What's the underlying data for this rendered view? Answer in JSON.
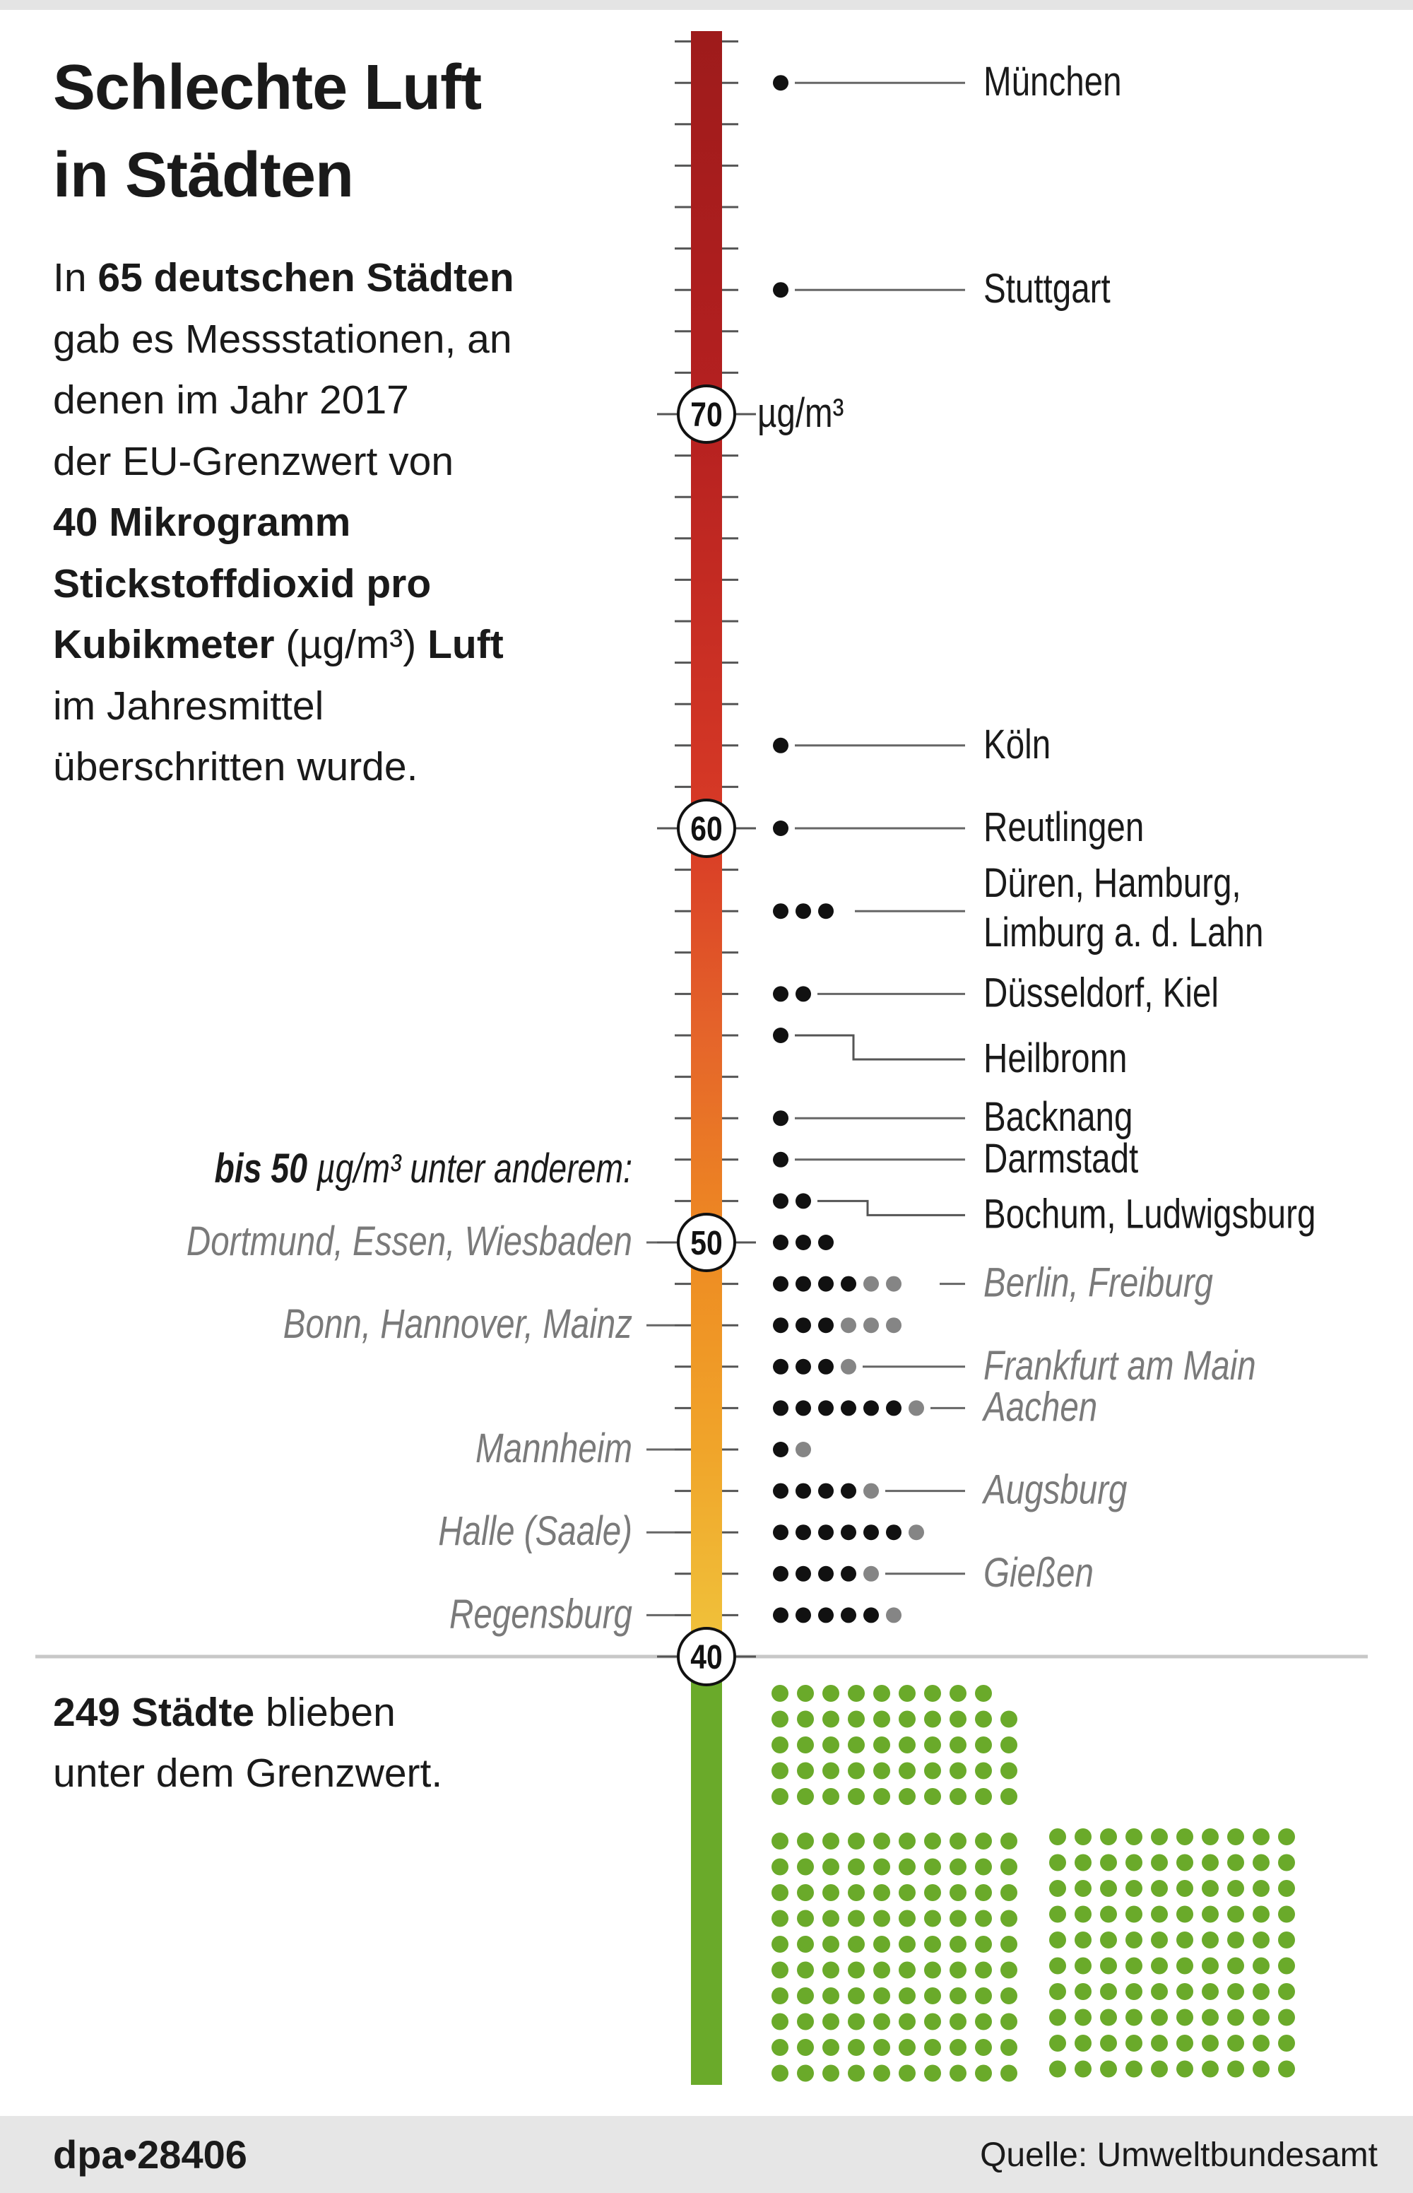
{
  "title_lines": [
    "Schlechte Luft",
    "in Städten"
  ],
  "intro": {
    "p1": "In ",
    "p1b": "65 deutschen Städten",
    "l2": "gab es Messstationen, an",
    "l3": "denen im Jahr 2017",
    "l4": "der EU-Grenzwert von",
    "l5b": "40 Mikrogramm",
    "l6b": "Stickstoffdioxid pro",
    "l7b": "Kubikmeter",
    "l7": " (µg/m³) ",
    "l7b2": "Luft",
    "l8": "im Jahresmittel",
    "l9": "überschritten wurde."
  },
  "below": {
    "b": "249 Städte",
    "rest": " blieben",
    "l2": "unter dem Grenzwert."
  },
  "footer": {
    "id": "dpa•28406",
    "source": "Quelle: Umweltbundesamt"
  },
  "colors": {
    "black_dot": "#111111",
    "grey_dot": "#858585",
    "green_dot": "#6aaa2a",
    "scale_green": "#6aaa2a",
    "scale_top": "#9e1b1b",
    "scale_bottom": "#f0c43c"
  },
  "chart_data": {
    "type": "dot-scale",
    "unit_label": "µg/m³",
    "scale_ticks": [
      70,
      60,
      50,
      40
    ],
    "left_heading": {
      "bold": "bis 50",
      "rest": " µg/m³ unter anderem:"
    },
    "rows": [
      {
        "value": 78,
        "black": 1,
        "grey": 0,
        "label": "München",
        "side": "right"
      },
      {
        "value": 73,
        "black": 1,
        "grey": 0,
        "label": "Stuttgart",
        "side": "right"
      },
      {
        "value": 62,
        "black": 1,
        "grey": 0,
        "label": "Köln",
        "side": "right"
      },
      {
        "value": 60,
        "black": 1,
        "grey": 0,
        "label": "Reutlingen",
        "side": "right"
      },
      {
        "value": 58,
        "black": 3,
        "grey": 0,
        "label": "Düren, Hamburg,|Limburg a. d. Lahn",
        "side": "right"
      },
      {
        "value": 56,
        "black": 2,
        "grey": 0,
        "label": "Düsseldorf, Kiel",
        "side": "right"
      },
      {
        "value": 55,
        "black": 1,
        "grey": 0,
        "label": "Heilbronn",
        "side": "right",
        "offset": true
      },
      {
        "value": 53,
        "black": 1,
        "grey": 0,
        "label": "Backnang",
        "side": "right"
      },
      {
        "value": 52,
        "black": 1,
        "grey": 0,
        "label": "Darmstadt",
        "side": "right"
      },
      {
        "value": 51,
        "black": 2,
        "grey": 0,
        "label": "Bochum, Ludwigsburg",
        "side": "right",
        "offset": true
      },
      {
        "value": 50,
        "black": 3,
        "grey": 0,
        "label": "Dortmund, Essen, Wiesbaden",
        "side": "left"
      },
      {
        "value": 49,
        "black": 4,
        "grey": 2,
        "label": "Berlin, Freiburg",
        "side": "right",
        "italic": true
      },
      {
        "value": 48,
        "black": 3,
        "grey": 3,
        "label": "Bonn, Hannover, Mainz",
        "side": "left"
      },
      {
        "value": 47,
        "black": 3,
        "grey": 1,
        "label": "Frankfurt am Main",
        "side": "right",
        "italic": true
      },
      {
        "value": 46,
        "black": 6,
        "grey": 1,
        "label": "Aachen",
        "side": "right",
        "italic": true
      },
      {
        "value": 45,
        "black": 1,
        "grey": 1,
        "label": "Mannheim",
        "side": "left"
      },
      {
        "value": 44,
        "black": 4,
        "grey": 1,
        "label": "Augsburg",
        "side": "right",
        "italic": true
      },
      {
        "value": 43,
        "black": 6,
        "grey": 1,
        "label": "Halle (Saale)",
        "side": "left"
      },
      {
        "value": 42,
        "black": 4,
        "grey": 1,
        "label": "Gießen",
        "side": "right",
        "italic": true
      },
      {
        "value": 41,
        "black": 5,
        "grey": 1,
        "label": "Regensburg",
        "side": "left"
      }
    ],
    "below_limit_count": 249
  }
}
